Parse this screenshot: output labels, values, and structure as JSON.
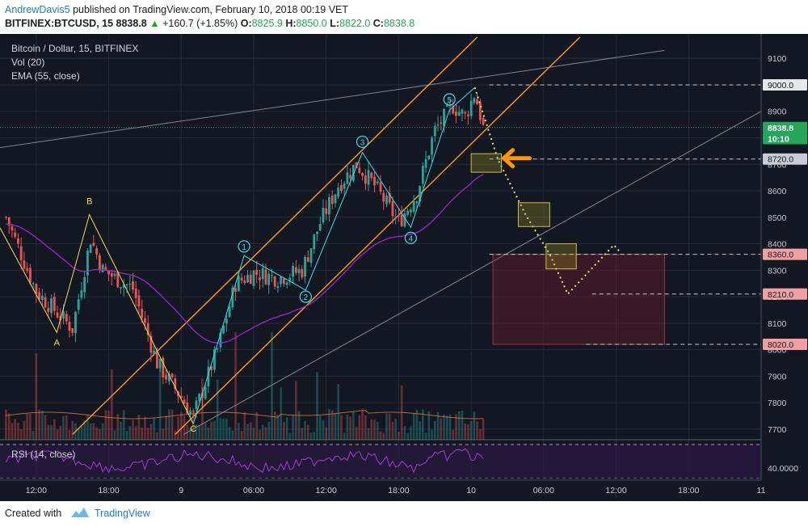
{
  "header": {
    "author": "AndrewDavis5",
    "published_text": "published on TradingView.com, February 10, 2018 00:19 VET",
    "symbol": "BITFINEX:BTCUSD, 15",
    "last": "8838.8",
    "change": "+160.7 (+1.85%)",
    "o_label": "O:",
    "o_value": "8825.9",
    "h_label": "H:",
    "h_value": "8850.0",
    "l_label": "L:",
    "l_value": "8822.0",
    "c_label": "C:",
    "c_value": "8838.8"
  },
  "legend": {
    "title": "Bitcoin / Dollar, 15, BITFINEX",
    "vol": "Vol (20)",
    "ema": "EMA (55, close)",
    "rsi": "RSI (14, close)"
  },
  "footer": {
    "created_with": "Created with",
    "brand": "TradingView"
  },
  "colors": {
    "background": "#131722",
    "up_candle": "#26a69a",
    "down_candle": "#ef5350",
    "channel": "#f7931a",
    "wave": "#35e0e8",
    "abc": "#e8e050",
    "ema": "#9b27c9",
    "rsi": "#a13cd0",
    "arrow": "#ff9800"
  },
  "chart_data": {
    "type": "candlestick",
    "price_axis": {
      "ylim": [
        7660,
        9180
      ],
      "ticks": [
        9100,
        9000,
        8900,
        8800,
        8700,
        8600,
        8500,
        8400,
        8300,
        8200,
        8100,
        8000,
        7900,
        7800,
        7700
      ]
    },
    "time_axis": {
      "range_hours": [
        -15,
        48
      ],
      "ticks": [
        "12:00",
        "18:00",
        "9",
        "06:00",
        "12:00",
        "18:00",
        "10",
        "06:00",
        "12:00",
        "18:00",
        "11"
      ],
      "tick_hours": [
        -12,
        -6,
        0,
        6,
        12,
        18,
        24,
        30,
        36,
        42,
        48
      ]
    },
    "price_labels": [
      {
        "text": "9000.0",
        "value": 9000,
        "style": "white"
      },
      {
        "text": "8838.8",
        "value": 8838.8,
        "style": "green"
      },
      {
        "text": "10:10",
        "value": 8797,
        "style": "countdown"
      },
      {
        "text": "8720.0",
        "value": 8720,
        "style": "gray"
      },
      {
        "text": "8360.0",
        "value": 8360,
        "style": "pink"
      },
      {
        "text": "8210.0",
        "value": 8210,
        "style": "pink"
      },
      {
        "text": "8020.0",
        "value": 8020,
        "style": "pink"
      }
    ],
    "horizontal_levels": [
      9000,
      8720,
      8360,
      8210,
      8020
    ],
    "path_points": [
      {
        "t": -14.5,
        "p": 8500
      },
      {
        "t": -12.0,
        "p": 8220
      },
      {
        "t": -9.0,
        "p": 8080
      },
      {
        "t": -7.5,
        "p": 8420
      },
      {
        "t": -6.5,
        "p": 8300
      },
      {
        "t": -4.0,
        "p": 8230
      },
      {
        "t": -2.0,
        "p": 7950
      },
      {
        "t": 0.0,
        "p": 7820
      },
      {
        "t": 1.0,
        "p": 7750
      },
      {
        "t": 3.0,
        "p": 8000
      },
      {
        "t": 4.5,
        "p": 8250
      },
      {
        "t": 6.0,
        "p": 8290
      },
      {
        "t": 8.0,
        "p": 8270
      },
      {
        "t": 10.0,
        "p": 8300
      },
      {
        "t": 11.5,
        "p": 8480
      },
      {
        "t": 13.0,
        "p": 8620
      },
      {
        "t": 14.5,
        "p": 8700
      },
      {
        "t": 16.0,
        "p": 8620
      },
      {
        "t": 18.0,
        "p": 8480
      },
      {
        "t": 19.5,
        "p": 8590
      },
      {
        "t": 21.0,
        "p": 8830
      },
      {
        "t": 22.5,
        "p": 8920
      },
      {
        "t": 23.5,
        "p": 8880
      },
      {
        "t": 24.3,
        "p": 8970
      },
      {
        "t": 25.0,
        "p": 8838.8
      }
    ],
    "wave_labels": [
      {
        "text": "1",
        "t": 5.2,
        "p": 8390
      },
      {
        "text": "2",
        "t": 10.3,
        "p": 8200
      },
      {
        "text": "3",
        "t": 15.0,
        "p": 8785
      },
      {
        "text": "4",
        "t": 19.0,
        "p": 8422
      },
      {
        "text": "5",
        "t": 22.2,
        "p": 8945
      }
    ],
    "abc_labels": [
      {
        "text": "A",
        "t": -10.3,
        "p": 8015
      },
      {
        "text": "B",
        "t": -7.6,
        "p": 8550
      },
      {
        "text": "C",
        "t": 1.0,
        "p": 7690
      }
    ],
    "arrow_level": 8720
  }
}
